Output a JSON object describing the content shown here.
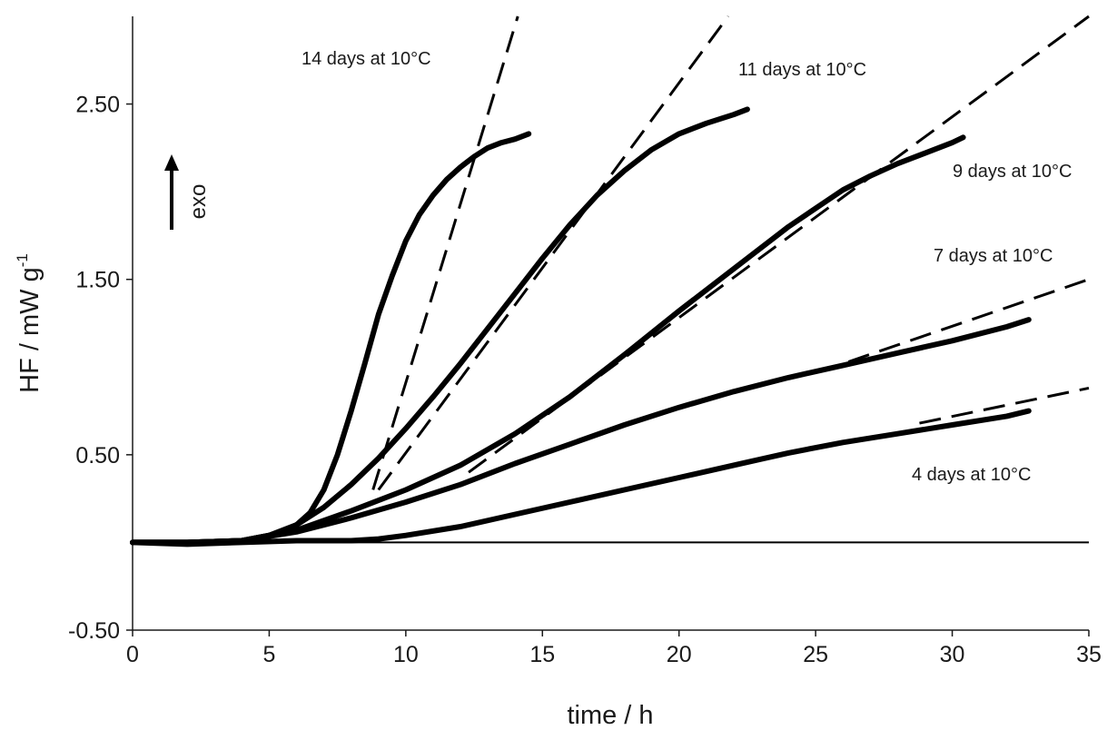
{
  "chart_data": {
    "type": "line",
    "title": "",
    "xlabel": "time  / h",
    "ylabel": "HF / mW g",
    "ylabel_superscript": "-1",
    "xlim": [
      0,
      35
    ],
    "ylim": [
      -0.5,
      3.0
    ],
    "x_ticks": [
      0,
      5,
      10,
      15,
      20,
      25,
      30,
      35
    ],
    "x_tick_labels": [
      "0",
      "5",
      "10",
      "15",
      "20",
      "25",
      "30",
      "35"
    ],
    "y_ticks": [
      -0.5,
      0.5,
      1.5,
      2.5
    ],
    "y_tick_labels": [
      "-0.50",
      "0.50",
      "1.50",
      "2.50"
    ],
    "grid": false,
    "legend": "none",
    "baseline_y": 0,
    "direction_annotation": "exo",
    "series": [
      {
        "label": "14 days at 10°C",
        "x": [
          0,
          2,
          4,
          5,
          5.5,
          6,
          6.5,
          7,
          7.5,
          8,
          8.5,
          9,
          9.5,
          10,
          10.5,
          11,
          11.5,
          12,
          12.5,
          13,
          13.5,
          14,
          14.5
        ],
        "y": [
          0,
          0,
          0.01,
          0.04,
          0.06,
          0.1,
          0.17,
          0.3,
          0.5,
          0.75,
          1.02,
          1.3,
          1.52,
          1.72,
          1.87,
          1.98,
          2.07,
          2.14,
          2.2,
          2.25,
          2.28,
          2.3,
          2.33
        ],
        "tangent": [
          [
            8.8,
            0.3
          ],
          [
            14.1,
            3.0
          ]
        ]
      },
      {
        "label": "11 days at 10°C",
        "x": [
          0,
          2,
          4,
          5,
          6,
          7,
          8,
          9,
          10,
          11,
          12,
          13,
          14,
          15,
          16,
          17,
          18,
          19,
          20,
          21,
          22,
          22.5
        ],
        "y": [
          0,
          0,
          0.01,
          0.04,
          0.1,
          0.2,
          0.33,
          0.48,
          0.65,
          0.83,
          1.02,
          1.22,
          1.42,
          1.62,
          1.81,
          1.98,
          2.12,
          2.24,
          2.33,
          2.39,
          2.44,
          2.47
        ],
        "tangent": [
          [
            9,
            0.3
          ],
          [
            21.8,
            3.0
          ]
        ]
      },
      {
        "label": "9 days at 10°C",
        "x": [
          0,
          2,
          4,
          6,
          8,
          10,
          12,
          14,
          16,
          18,
          20,
          22,
          24,
          26,
          27,
          28,
          29,
          30,
          30.4
        ],
        "y": [
          0,
          0,
          0.01,
          0.07,
          0.18,
          0.3,
          0.44,
          0.62,
          0.83,
          1.07,
          1.32,
          1.56,
          1.8,
          2.01,
          2.09,
          2.16,
          2.22,
          2.28,
          2.31
        ],
        "tangent": [
          [
            12.3,
            0.4
          ],
          [
            35,
            3.0
          ]
        ]
      },
      {
        "label": "7 days at 10°C",
        "x": [
          0,
          2,
          4,
          6,
          8,
          10,
          12,
          14,
          16,
          18,
          20,
          22,
          24,
          26,
          28,
          30,
          32,
          32.8
        ],
        "y": [
          0,
          0,
          0.01,
          0.06,
          0.14,
          0.23,
          0.33,
          0.45,
          0.56,
          0.67,
          0.77,
          0.86,
          0.94,
          1.01,
          1.08,
          1.15,
          1.23,
          1.27
        ],
        "tangent": [
          [
            26.2,
            1.03
          ],
          [
            35,
            1.5
          ]
        ]
      },
      {
        "label": "4 days at 10°C",
        "x": [
          0,
          2,
          4,
          6,
          8,
          9,
          10,
          12,
          14,
          16,
          18,
          20,
          22,
          24,
          26,
          28,
          30,
          32,
          32.8
        ],
        "y": [
          0,
          -0.01,
          0,
          0.01,
          0.01,
          0.02,
          0.04,
          0.09,
          0.16,
          0.23,
          0.3,
          0.37,
          0.44,
          0.51,
          0.57,
          0.62,
          0.67,
          0.72,
          0.75
        ],
        "tangent": [
          [
            28.8,
            0.68
          ],
          [
            35,
            0.88
          ]
        ]
      }
    ]
  }
}
